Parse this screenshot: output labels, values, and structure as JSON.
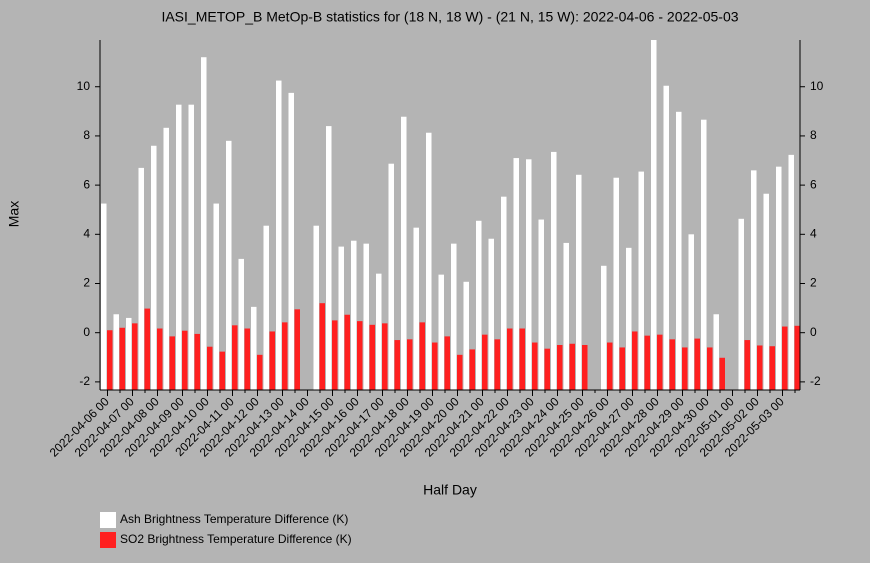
{
  "chart_data": {
    "type": "bar",
    "title": "IASI_METOP_B MetOp-B statistics for (18 N, 18 W) - (21 N, 15 W): 2022-04-06 - 2022-05-03",
    "x_label": "Half Day",
    "y_label": "Max",
    "categories": [
      "2022-04-06 00",
      null,
      "2022-04-07 00",
      null,
      "2022-04-08 00",
      null,
      "2022-04-09 00",
      null,
      "2022-04-10 00",
      null,
      "2022-04-11 00",
      null,
      "2022-04-12 00",
      null,
      "2022-04-13 00",
      null,
      "2022-04-14 00",
      null,
      "2022-04-15 00",
      null,
      "2022-04-16 00",
      null,
      "2022-04-17 00",
      null,
      "2022-04-18 00",
      null,
      "2022-04-19 00",
      null,
      "2022-04-20 00",
      null,
      "2022-04-21 00",
      null,
      "2022-04-22 00",
      null,
      "2022-04-23 00",
      null,
      "2022-04-24 00",
      null,
      "2022-04-25 00",
      null,
      "2022-04-26 00",
      null,
      "2022-04-27 00",
      null,
      "2022-04-28 00",
      null,
      "2022-04-29 00",
      null,
      "2022-04-30 00",
      null,
      "2022-05-01 00",
      null,
      "2022-05-02 00",
      null,
      "2022-05-03 00",
      null
    ],
    "series": [
      {
        "name": "Ash Brightness Temperature Difference (K)",
        "color": "#ffffff",
        "values": [
          5.25,
          0.75,
          0.6,
          6.7,
          7.6,
          8.33,
          9.27,
          9.27,
          11.2,
          5.25,
          7.8,
          3.0,
          1.05,
          4.35,
          10.25,
          9.75,
          null,
          4.35,
          8.4,
          3.5,
          3.74,
          3.62,
          2.4,
          6.87,
          8.78,
          4.27,
          8.13,
          2.36,
          3.62,
          2.07,
          4.55,
          3.82,
          5.53,
          7.1,
          7.05,
          4.6,
          7.35,
          3.65,
          6.42,
          null,
          2.72,
          6.3,
          3.45,
          6.55,
          11.9,
          10.04,
          8.98,
          4.0,
          8.66,
          0.75,
          null,
          4.63,
          6.6,
          5.65,
          6.75,
          7.23
        ]
      },
      {
        "name": "SO2 Brightness Temperature Difference (K)",
        "color": "#ff2020",
        "values": [
          0.1,
          0.2,
          0.38,
          0.98,
          0.17,
          -0.15,
          0.08,
          -0.05,
          -0.57,
          -0.77,
          0.3,
          0.17,
          -0.9,
          0.05,
          0.42,
          0.95,
          null,
          1.2,
          0.5,
          0.73,
          0.47,
          0.32,
          0.38,
          -0.3,
          -0.27,
          0.42,
          -0.4,
          -0.15,
          -0.9,
          -0.68,
          -0.08,
          -0.27,
          0.17,
          0.17,
          -0.4,
          -0.65,
          -0.5,
          -0.45,
          -0.5,
          null,
          -0.4,
          -0.6,
          0.05,
          -0.12,
          -0.08,
          -0.27,
          -0.6,
          -0.24,
          -0.6,
          -1.02,
          null,
          -0.3,
          -0.52,
          -0.55,
          0.25,
          0.28
        ]
      }
    ],
    "ylim": [
      -2.33,
      11.9
    ],
    "yticks": [
      -2,
      0,
      2,
      4,
      6,
      8,
      10
    ]
  }
}
